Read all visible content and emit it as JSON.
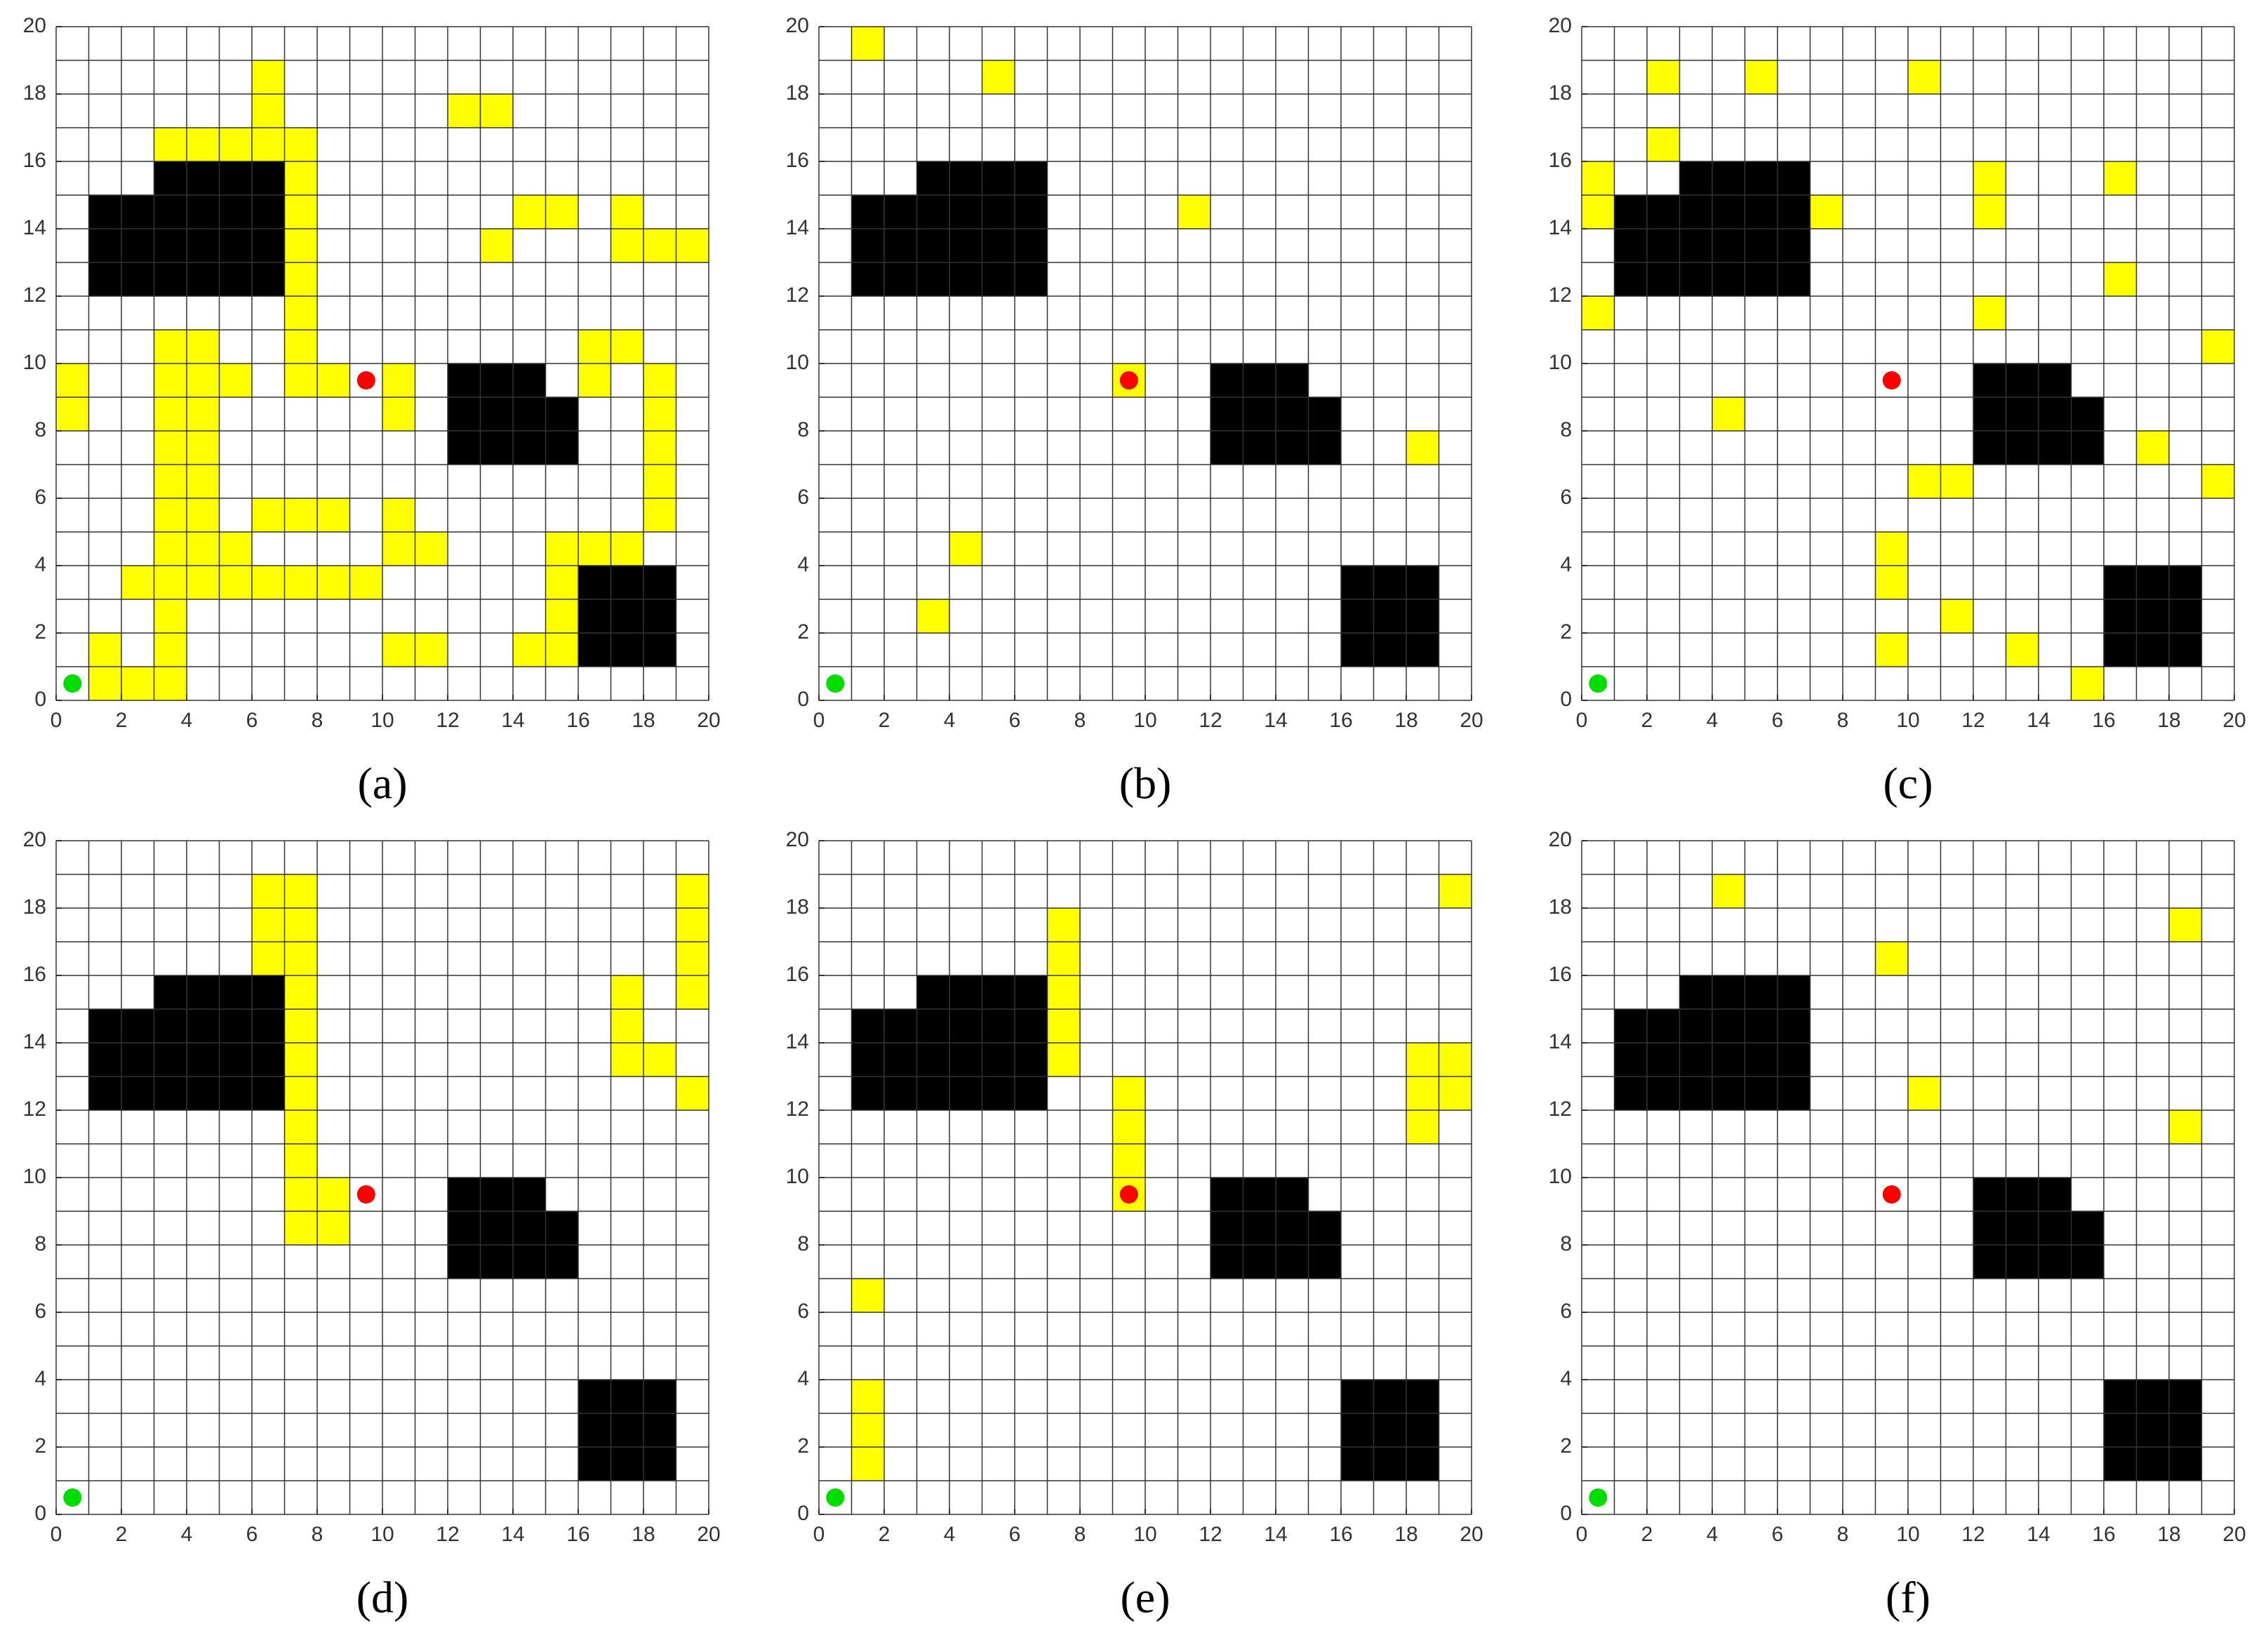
{
  "chart_data": [
    {
      "type": "grid-map",
      "label": "(a)",
      "xlim": [
        0,
        20
      ],
      "ylim": [
        0,
        20
      ],
      "xticks": [
        0,
        2,
        4,
        6,
        8,
        10,
        12,
        14,
        16,
        18,
        20
      ],
      "yticks": [
        0,
        2,
        4,
        6,
        8,
        10,
        12,
        14,
        16,
        18,
        20
      ],
      "grid_step": 1,
      "obstacles": [
        [
          1,
          12,
          6,
          3
        ],
        [
          3,
          15,
          4,
          1
        ],
        [
          12,
          7,
          4,
          2
        ],
        [
          12,
          9,
          3,
          1
        ],
        [
          16,
          1,
          3,
          3
        ]
      ],
      "obstacle_color": "#000000",
      "overlap_cells": [
        [
          6,
          16
        ],
        [
          6,
          17
        ],
        [
          6,
          18
        ],
        [
          3,
          16
        ],
        [
          4,
          16
        ],
        [
          5,
          16
        ],
        [
          7,
          9
        ],
        [
          7,
          10
        ],
        [
          7,
          11
        ],
        [
          7,
          12
        ],
        [
          7,
          13
        ],
        [
          7,
          14
        ],
        [
          7,
          15
        ],
        [
          7,
          16
        ],
        [
          8,
          9
        ],
        [
          12,
          17
        ],
        [
          13,
          17
        ],
        [
          13,
          13
        ],
        [
          14,
          14
        ],
        [
          15,
          14
        ],
        [
          17,
          14
        ],
        [
          17,
          13
        ],
        [
          18,
          13
        ],
        [
          19,
          13
        ],
        [
          16,
          9
        ],
        [
          16,
          10
        ],
        [
          17,
          10
        ],
        [
          18,
          8
        ],
        [
          18,
          9
        ],
        [
          10,
          8
        ],
        [
          10,
          9
        ],
        [
          0,
          8
        ],
        [
          0,
          9
        ],
        [
          3,
          0
        ],
        [
          3,
          1
        ],
        [
          3,
          2
        ],
        [
          3,
          3
        ],
        [
          3,
          4
        ],
        [
          3,
          5
        ],
        [
          3,
          6
        ],
        [
          3,
          7
        ],
        [
          3,
          8
        ],
        [
          3,
          9
        ],
        [
          3,
          10
        ],
        [
          4,
          3
        ],
        [
          4,
          4
        ],
        [
          4,
          5
        ],
        [
          4,
          6
        ],
        [
          4,
          7
        ],
        [
          4,
          8
        ],
        [
          4,
          9
        ],
        [
          4,
          10
        ],
        [
          5,
          9
        ],
        [
          5,
          4
        ],
        [
          6,
          5
        ],
        [
          7,
          5
        ],
        [
          8,
          5
        ],
        [
          2,
          3
        ],
        [
          5,
          3
        ],
        [
          6,
          3
        ],
        [
          7,
          3
        ],
        [
          8,
          3
        ],
        [
          9,
          3
        ],
        [
          10,
          4
        ],
        [
          10,
          5
        ],
        [
          11,
          4
        ],
        [
          18,
          5
        ],
        [
          18,
          6
        ],
        [
          18,
          7
        ],
        [
          15,
          4
        ],
        [
          16,
          4
        ],
        [
          17,
          4
        ],
        [
          15,
          1
        ],
        [
          15,
          2
        ],
        [
          15,
          3
        ],
        [
          14,
          1
        ],
        [
          10,
          1
        ],
        [
          11,
          1
        ],
        [
          1,
          0
        ],
        [
          1,
          1
        ],
        [
          2,
          0
        ]
      ],
      "overlap_color": "#ffff00",
      "start": [
        0.5,
        0.5
      ],
      "start_color": "#00dd00",
      "goal": [
        9.5,
        9.5
      ],
      "goal_color": "#ff0000"
    },
    {
      "type": "grid-map",
      "label": "(b)",
      "xlim": [
        0,
        20
      ],
      "ylim": [
        0,
        20
      ],
      "xticks": [
        0,
        2,
        4,
        6,
        8,
        10,
        12,
        14,
        16,
        18,
        20
      ],
      "yticks": [
        0,
        2,
        4,
        6,
        8,
        10,
        12,
        14,
        16,
        18,
        20
      ],
      "grid_step": 1,
      "obstacles": [
        [
          1,
          12,
          6,
          3
        ],
        [
          3,
          15,
          4,
          1
        ],
        [
          12,
          7,
          4,
          2
        ],
        [
          12,
          9,
          3,
          1
        ],
        [
          16,
          1,
          3,
          3
        ]
      ],
      "obstacle_color": "#000000",
      "overlap_cells": [
        [
          1,
          19
        ],
        [
          5,
          18
        ],
        [
          11,
          14
        ],
        [
          9,
          9
        ],
        [
          18,
          7
        ],
        [
          4,
          4
        ],
        [
          3,
          2
        ]
      ],
      "overlap_color": "#ffff00",
      "start": [
        0.5,
        0.5
      ],
      "start_color": "#00dd00",
      "goal": [
        9.5,
        9.5
      ],
      "goal_color": "#ff0000"
    },
    {
      "type": "grid-map",
      "label": "(c)",
      "xlim": [
        0,
        20
      ],
      "ylim": [
        0,
        20
      ],
      "xticks": [
        0,
        2,
        4,
        6,
        8,
        10,
        12,
        14,
        16,
        18,
        20
      ],
      "yticks": [
        0,
        2,
        4,
        6,
        8,
        10,
        12,
        14,
        16,
        18,
        20
      ],
      "grid_step": 1,
      "obstacles": [
        [
          1,
          12,
          6,
          3
        ],
        [
          3,
          15,
          4,
          1
        ],
        [
          12,
          7,
          4,
          2
        ],
        [
          12,
          9,
          3,
          1
        ],
        [
          16,
          1,
          3,
          3
        ]
      ],
      "obstacle_color": "#000000",
      "overlap_cells": [
        [
          2,
          18
        ],
        [
          5,
          18
        ],
        [
          10,
          18
        ],
        [
          2,
          16
        ],
        [
          0,
          14
        ],
        [
          0,
          15
        ],
        [
          7,
          14
        ],
        [
          12,
          14
        ],
        [
          12,
          15
        ],
        [
          16,
          15
        ],
        [
          0,
          11
        ],
        [
          12,
          11
        ],
        [
          16,
          12
        ],
        [
          19,
          10
        ],
        [
          4,
          8
        ],
        [
          17,
          7
        ],
        [
          10,
          6
        ],
        [
          11,
          6
        ],
        [
          19,
          6
        ],
        [
          9,
          4
        ],
        [
          9,
          3
        ],
        [
          11,
          2
        ],
        [
          9,
          1
        ],
        [
          13,
          1
        ],
        [
          15,
          0
        ]
      ],
      "overlap_color": "#ffff00",
      "start": [
        0.5,
        0.5
      ],
      "start_color": "#00dd00",
      "goal": [
        9.5,
        9.5
      ],
      "goal_color": "#ff0000"
    },
    {
      "type": "grid-map",
      "label": "(d)",
      "xlim": [
        0,
        20
      ],
      "ylim": [
        0,
        20
      ],
      "xticks": [
        0,
        2,
        4,
        6,
        8,
        10,
        12,
        14,
        16,
        18,
        20
      ],
      "yticks": [
        0,
        2,
        4,
        6,
        8,
        10,
        12,
        14,
        16,
        18,
        20
      ],
      "grid_step": 1,
      "obstacles": [
        [
          1,
          12,
          6,
          3
        ],
        [
          3,
          15,
          4,
          1
        ],
        [
          12,
          7,
          4,
          2
        ],
        [
          12,
          9,
          3,
          1
        ],
        [
          16,
          1,
          3,
          3
        ]
      ],
      "obstacle_color": "#000000",
      "overlap_cells": [
        [
          6,
          16
        ],
        [
          6,
          17
        ],
        [
          6,
          18
        ],
        [
          7,
          8
        ],
        [
          7,
          9
        ],
        [
          7,
          10
        ],
        [
          7,
          11
        ],
        [
          7,
          12
        ],
        [
          7,
          13
        ],
        [
          7,
          14
        ],
        [
          7,
          15
        ],
        [
          7,
          16
        ],
        [
          7,
          17
        ],
        [
          7,
          18
        ],
        [
          8,
          8
        ],
        [
          8,
          9
        ],
        [
          19,
          15
        ],
        [
          19,
          16
        ],
        [
          19,
          17
        ],
        [
          19,
          18
        ],
        [
          17,
          13
        ],
        [
          17,
          14
        ],
        [
          17,
          15
        ],
        [
          18,
          13
        ],
        [
          19,
          12
        ]
      ],
      "overlap_color": "#ffff00",
      "start": [
        0.5,
        0.5
      ],
      "start_color": "#00dd00",
      "goal": [
        9.5,
        9.5
      ],
      "goal_color": "#ff0000"
    },
    {
      "type": "grid-map",
      "label": "(e)",
      "xlim": [
        0,
        20
      ],
      "ylim": [
        0,
        20
      ],
      "xticks": [
        0,
        2,
        4,
        6,
        8,
        10,
        12,
        14,
        16,
        18,
        20
      ],
      "yticks": [
        0,
        2,
        4,
        6,
        8,
        10,
        12,
        14,
        16,
        18,
        20
      ],
      "grid_step": 1,
      "obstacles": [
        [
          1,
          12,
          6,
          3
        ],
        [
          3,
          15,
          4,
          1
        ],
        [
          12,
          7,
          4,
          2
        ],
        [
          12,
          9,
          3,
          1
        ],
        [
          16,
          1,
          3,
          3
        ]
      ],
      "obstacle_color": "#000000",
      "overlap_cells": [
        [
          19,
          18
        ],
        [
          7,
          13
        ],
        [
          7,
          14
        ],
        [
          7,
          15
        ],
        [
          7,
          16
        ],
        [
          7,
          17
        ],
        [
          9,
          9
        ],
        [
          9,
          10
        ],
        [
          9,
          11
        ],
        [
          9,
          12
        ],
        [
          18,
          11
        ],
        [
          18,
          12
        ],
        [
          18,
          13
        ],
        [
          19,
          12
        ],
        [
          19,
          13
        ],
        [
          1,
          6
        ],
        [
          1,
          1
        ],
        [
          1,
          2
        ],
        [
          1,
          3
        ]
      ],
      "overlap_color": "#ffff00",
      "start": [
        0.5,
        0.5
      ],
      "start_color": "#00dd00",
      "goal": [
        9.5,
        9.5
      ],
      "goal_color": "#ff0000"
    },
    {
      "type": "grid-map",
      "label": "(f)",
      "xlim": [
        0,
        20
      ],
      "ylim": [
        0,
        20
      ],
      "xticks": [
        0,
        2,
        4,
        6,
        8,
        10,
        12,
        14,
        16,
        18,
        20
      ],
      "yticks": [
        0,
        2,
        4,
        6,
        8,
        10,
        12,
        14,
        16,
        18,
        20
      ],
      "grid_step": 1,
      "obstacles": [
        [
          1,
          12,
          6,
          3
        ],
        [
          3,
          15,
          4,
          1
        ],
        [
          12,
          7,
          4,
          2
        ],
        [
          12,
          9,
          3,
          1
        ],
        [
          16,
          1,
          3,
          3
        ]
      ],
      "obstacle_color": "#000000",
      "overlap_cells": [
        [
          4,
          18
        ],
        [
          9,
          16
        ],
        [
          18,
          17
        ],
        [
          10,
          12
        ],
        [
          18,
          11
        ]
      ],
      "overlap_color": "#ffff00",
      "start": [
        0.5,
        0.5
      ],
      "start_color": "#00dd00",
      "goal": [
        9.5,
        9.5
      ],
      "goal_color": "#ff0000"
    }
  ]
}
